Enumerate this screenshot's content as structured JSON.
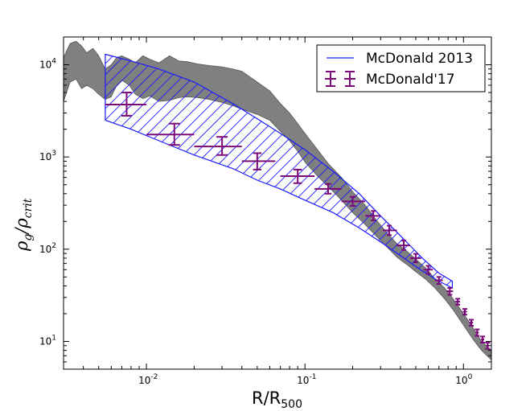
{
  "chart_data": {
    "type": "line",
    "xscale": "log",
    "yscale": "log",
    "xlim": [
      0.003,
      1.5
    ],
    "ylim": [
      5,
      20000
    ],
    "xlabel": "R/R",
    "xlabel_sub": "500",
    "ylabel": "ρ",
    "ylabel_sub_1": "g",
    "ylabel_mid": "/ρ",
    "ylabel_sub_2": "crit",
    "x_ticks": [
      {
        "value": 0.01,
        "base": "10",
        "exp": "-2"
      },
      {
        "value": 0.1,
        "base": "10",
        "exp": "-1"
      },
      {
        "value": 1,
        "base": "10",
        "exp": "0"
      }
    ],
    "y_ticks": [
      {
        "value": 10,
        "base": "10",
        "exp": "1"
      },
      {
        "value": 100,
        "base": "10",
        "exp": "2"
      },
      {
        "value": 1000,
        "base": "10",
        "exp": "3"
      },
      {
        "value": 10000,
        "base": "10",
        "exp": "4"
      }
    ],
    "legend": {
      "position": "top-right",
      "entries": [
        {
          "label": "McDonald 2013",
          "style": "blue-line"
        },
        {
          "label": "McDonald'17",
          "style": "purple-errorbar"
        }
      ]
    },
    "colors": {
      "band_fill": "#808080",
      "band_edge": "#555555",
      "hatch": "#1a1aff",
      "errorbar": "#7a0a7a"
    },
    "simulation_band": {
      "name": "gray band",
      "x": [
        0.003,
        0.0033,
        0.0036,
        0.0039,
        0.0042,
        0.0046,
        0.005,
        0.0055,
        0.006,
        0.0065,
        0.007,
        0.0078,
        0.0085,
        0.0095,
        0.0105,
        0.012,
        0.014,
        0.016,
        0.018,
        0.021,
        0.025,
        0.03,
        0.035,
        0.04,
        0.05,
        0.06,
        0.07,
        0.08,
        0.09,
        0.1,
        0.12,
        0.14,
        0.17,
        0.2,
        0.24,
        0.28,
        0.33,
        0.38,
        0.44,
        0.5,
        0.58,
        0.66,
        0.76,
        0.86,
        1.0,
        1.15,
        1.3,
        1.5
      ],
      "upper": [
        12000,
        17000,
        18000,
        16000,
        13500,
        15000,
        12500,
        9000,
        10000,
        12000,
        12500,
        11500,
        10500,
        12500,
        11500,
        10500,
        12500,
        11000,
        10800,
        10200,
        9800,
        9500,
        9000,
        8500,
        6500,
        5200,
        3800,
        3000,
        2300,
        1800,
        1200,
        850,
        600,
        420,
        300,
        210,
        150,
        115,
        95,
        78,
        62,
        48,
        38,
        29,
        20,
        14,
        10,
        8
      ],
      "lower": [
        4000,
        6500,
        7000,
        5500,
        6000,
        5500,
        4800,
        4200,
        4500,
        6000,
        6800,
        6000,
        4800,
        4300,
        4600,
        4000,
        4100,
        4400,
        4500,
        4400,
        4200,
        3900,
        3600,
        3300,
        2900,
        2500,
        1900,
        1500,
        1150,
        880,
        620,
        480,
        340,
        250,
        185,
        140,
        105,
        82,
        68,
        57,
        47,
        38,
        29,
        22,
        15,
        10.5,
        8,
        6.3
      ]
    },
    "mcdonald_2013": {
      "name": "McDonald 2013",
      "x": [
        0.0055,
        0.008,
        0.012,
        0.02,
        0.035,
        0.05,
        0.07,
        0.1,
        0.15,
        0.22,
        0.3,
        0.4,
        0.55,
        0.7,
        0.85
      ],
      "upper": [
        13000,
        11000,
        9000,
        6500,
        3800,
        2600,
        1800,
        1200,
        700,
        400,
        230,
        140,
        80,
        55,
        45
      ],
      "lower": [
        2500,
        2000,
        1500,
        1050,
        750,
        560,
        450,
        340,
        250,
        170,
        120,
        85,
        58,
        45,
        38
      ]
    },
    "mcdonald_2017": {
      "name": "McDonald'17",
      "points": [
        {
          "x": 0.0075,
          "y": 3700,
          "xlo": 0.0055,
          "xhi": 0.01,
          "ylo": 2800,
          "yhi": 5000
        },
        {
          "x": 0.015,
          "y": 1750,
          "xlo": 0.01,
          "xhi": 0.02,
          "ylo": 1350,
          "yhi": 2300
        },
        {
          "x": 0.03,
          "y": 1300,
          "xlo": 0.02,
          "xhi": 0.04,
          "ylo": 1050,
          "yhi": 1650
        },
        {
          "x": 0.05,
          "y": 900,
          "xlo": 0.04,
          "xhi": 0.065,
          "ylo": 730,
          "yhi": 1100
        },
        {
          "x": 0.09,
          "y": 620,
          "xlo": 0.07,
          "xhi": 0.115,
          "ylo": 520,
          "yhi": 730
        },
        {
          "x": 0.14,
          "y": 450,
          "xlo": 0.115,
          "xhi": 0.17,
          "ylo": 400,
          "yhi": 510
        },
        {
          "x": 0.2,
          "y": 330,
          "xlo": 0.17,
          "xhi": 0.24,
          "ylo": 295,
          "yhi": 370
        },
        {
          "x": 0.27,
          "y": 230,
          "xlo": 0.24,
          "xhi": 0.3,
          "ylo": 205,
          "yhi": 260
        },
        {
          "x": 0.34,
          "y": 160,
          "xlo": 0.31,
          "xhi": 0.38,
          "ylo": 142,
          "yhi": 180
        },
        {
          "x": 0.42,
          "y": 110,
          "xlo": 0.38,
          "xhi": 0.46,
          "ylo": 98,
          "yhi": 124
        },
        {
          "x": 0.5,
          "y": 80,
          "xlo": 0.46,
          "xhi": 0.54,
          "ylo": 72,
          "yhi": 89
        },
        {
          "x": 0.6,
          "y": 60,
          "xlo": 0.56,
          "xhi": 0.64,
          "ylo": 54,
          "yhi": 66
        },
        {
          "x": 0.7,
          "y": 46,
          "xlo": 0.66,
          "xhi": 0.74,
          "ylo": 42,
          "yhi": 50
        },
        {
          "x": 0.82,
          "y": 35,
          "xlo": 0.78,
          "xhi": 0.86,
          "ylo": 32,
          "yhi": 38
        },
        {
          "x": 0.92,
          "y": 27,
          "xlo": 0.89,
          "xhi": 0.95,
          "ylo": 25,
          "yhi": 29
        },
        {
          "x": 1.02,
          "y": 21,
          "xlo": 0.99,
          "xhi": 1.05,
          "ylo": 19.5,
          "yhi": 22.5
        },
        {
          "x": 1.12,
          "y": 16,
          "xlo": 1.09,
          "xhi": 1.15,
          "ylo": 14.8,
          "yhi": 17.2
        },
        {
          "x": 1.22,
          "y": 12.5,
          "xlo": 1.19,
          "xhi": 1.25,
          "ylo": 11.5,
          "yhi": 13.5
        },
        {
          "x": 1.32,
          "y": 10.5,
          "xlo": 1.29,
          "xhi": 1.35,
          "ylo": 9.7,
          "yhi": 11.3
        },
        {
          "x": 1.42,
          "y": 9,
          "xlo": 1.39,
          "xhi": 1.45,
          "ylo": 8.3,
          "yhi": 9.7
        }
      ]
    }
  }
}
